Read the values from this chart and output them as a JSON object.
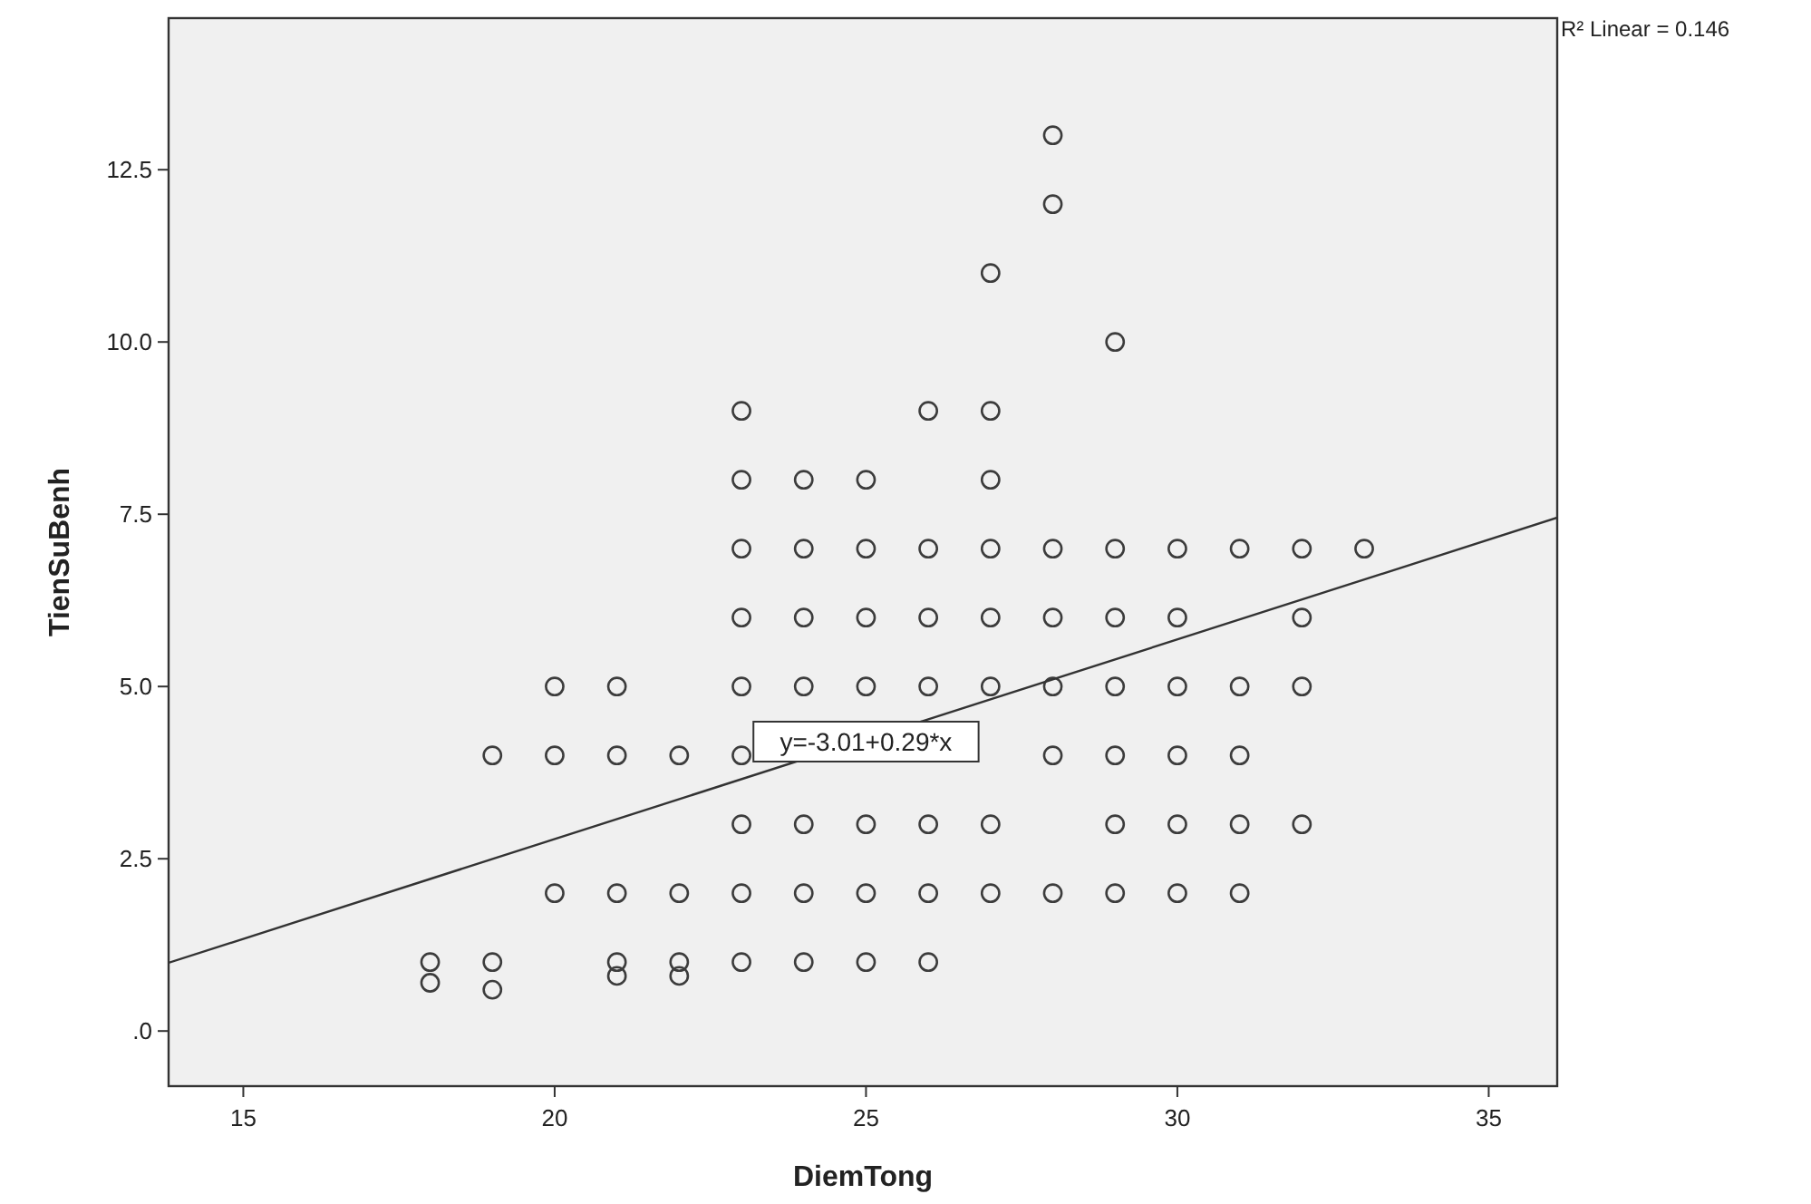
{
  "chart_data": {
    "type": "scatter",
    "xlabel": "DiemTong",
    "ylabel": "TienSuBenh",
    "xlim": [
      13.8,
      36.1
    ],
    "ylim": [
      -0.8,
      14.7
    ],
    "xticks": [
      15,
      20,
      25,
      30,
      35
    ],
    "yticks": [
      {
        "value": 0,
        "label": ".0"
      },
      {
        "value": 2.5,
        "label": "2.5"
      },
      {
        "value": 5,
        "label": "5.0"
      },
      {
        "value": 7.5,
        "label": "7.5"
      },
      {
        "value": 10,
        "label": "10.0"
      },
      {
        "value": 12.5,
        "label": "12.5"
      }
    ],
    "grid": false,
    "series": [
      {
        "marker": "circle",
        "color": "#3c3c3c",
        "x": [
          28,
          28,
          27,
          29,
          23,
          26,
          27,
          23,
          24,
          25,
          27,
          23,
          24,
          25,
          26,
          27,
          28,
          29,
          30,
          31,
          32,
          33,
          23,
          24,
          25,
          26,
          27,
          28,
          29,
          30,
          32,
          20,
          21,
          23,
          24,
          25,
          26,
          27,
          28,
          29,
          30,
          31,
          32,
          19,
          20,
          21,
          22,
          23,
          28,
          29,
          30,
          31,
          23,
          24,
          25,
          26,
          27,
          29,
          30,
          31,
          32,
          20,
          21,
          22,
          23,
          24,
          25,
          26,
          27,
          28,
          29,
          30,
          31,
          18,
          19,
          21,
          22,
          23,
          24,
          25,
          26,
          18,
          19,
          21,
          22
        ],
        "values": [
          13,
          12,
          11,
          10,
          9,
          9,
          9,
          8,
          8,
          8,
          8,
          7,
          7,
          7,
          7,
          7,
          7,
          7,
          7,
          7,
          7,
          7,
          6,
          6,
          6,
          6,
          6,
          6,
          6,
          6,
          6,
          5,
          5,
          5,
          5,
          5,
          5,
          5,
          5,
          5,
          5,
          5,
          5,
          4,
          4,
          4,
          4,
          4,
          4,
          4,
          4,
          4,
          3,
          3,
          3,
          3,
          3,
          3,
          3,
          3,
          3,
          2,
          2,
          2,
          2,
          2,
          2,
          2,
          2,
          2,
          2,
          2,
          2,
          1,
          1,
          1,
          1,
          1,
          1,
          1,
          1,
          0.7,
          0.6,
          0.8,
          0.8
        ]
      },
      {
        "type": "line",
        "color": "#333333",
        "x": [
          13.8,
          36.1
        ],
        "values": [
          0.99,
          7.45
        ]
      }
    ],
    "annotations": [
      "R² Linear = 0.146",
      {
        "text": "y=-3.01+0.29*x",
        "x": 25,
        "y": 4.2
      }
    ]
  }
}
